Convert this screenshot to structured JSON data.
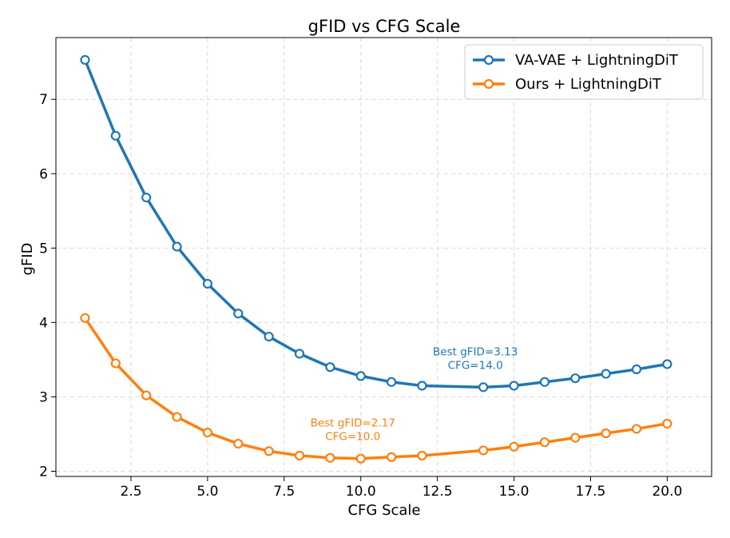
{
  "chart_data": {
    "type": "line",
    "title": "gFID vs CFG Scale",
    "xlabel": "CFG Scale",
    "ylabel": "gFID",
    "xlim": [
      0.05,
      21.45
    ],
    "ylim": [
      1.93,
      7.83
    ],
    "x_ticks": [
      2.5,
      5.0,
      7.5,
      10.0,
      12.5,
      15.0,
      17.5,
      20.0
    ],
    "x_tick_labels": [
      "2.5",
      "5.0",
      "7.5",
      "10.0",
      "12.5",
      "15.0",
      "17.5",
      "20.0"
    ],
    "y_ticks": [
      2,
      3,
      4,
      5,
      6,
      7
    ],
    "y_tick_labels": [
      "2",
      "3",
      "4",
      "5",
      "6",
      "7"
    ],
    "grid": true,
    "legend_position": "top-right",
    "x": [
      1,
      2,
      3,
      4,
      5,
      6,
      7,
      8,
      9,
      10,
      11,
      12,
      14,
      15,
      16,
      17,
      18,
      19,
      20
    ],
    "series": [
      {
        "name": "VA-VAE + LightningDiT",
        "color": "#1f77b4",
        "values": [
          7.53,
          6.51,
          5.68,
          5.02,
          4.52,
          4.12,
          3.81,
          3.58,
          3.4,
          3.28,
          3.2,
          3.15,
          3.13,
          3.15,
          3.2,
          3.25,
          3.31,
          3.37,
          3.44
        ]
      },
      {
        "name": "Ours + LightningDiT",
        "color": "#ff7f0e",
        "values": [
          4.06,
          3.45,
          3.02,
          2.73,
          2.52,
          2.37,
          2.27,
          2.21,
          2.18,
          2.17,
          2.19,
          2.21,
          2.28,
          2.33,
          2.39,
          2.45,
          2.51,
          2.57,
          2.64
        ]
      }
    ],
    "annotations": [
      {
        "line1": "Best gFID=3.13",
        "line2": "CFG=14.0",
        "x": 14.0,
        "y": 3.13,
        "color": "#1f77b4"
      },
      {
        "line1": "Best gFID=2.17",
        "line2": "CFG=10.0",
        "x": 10.0,
        "y": 2.17,
        "color": "#ff7f0e"
      }
    ]
  }
}
